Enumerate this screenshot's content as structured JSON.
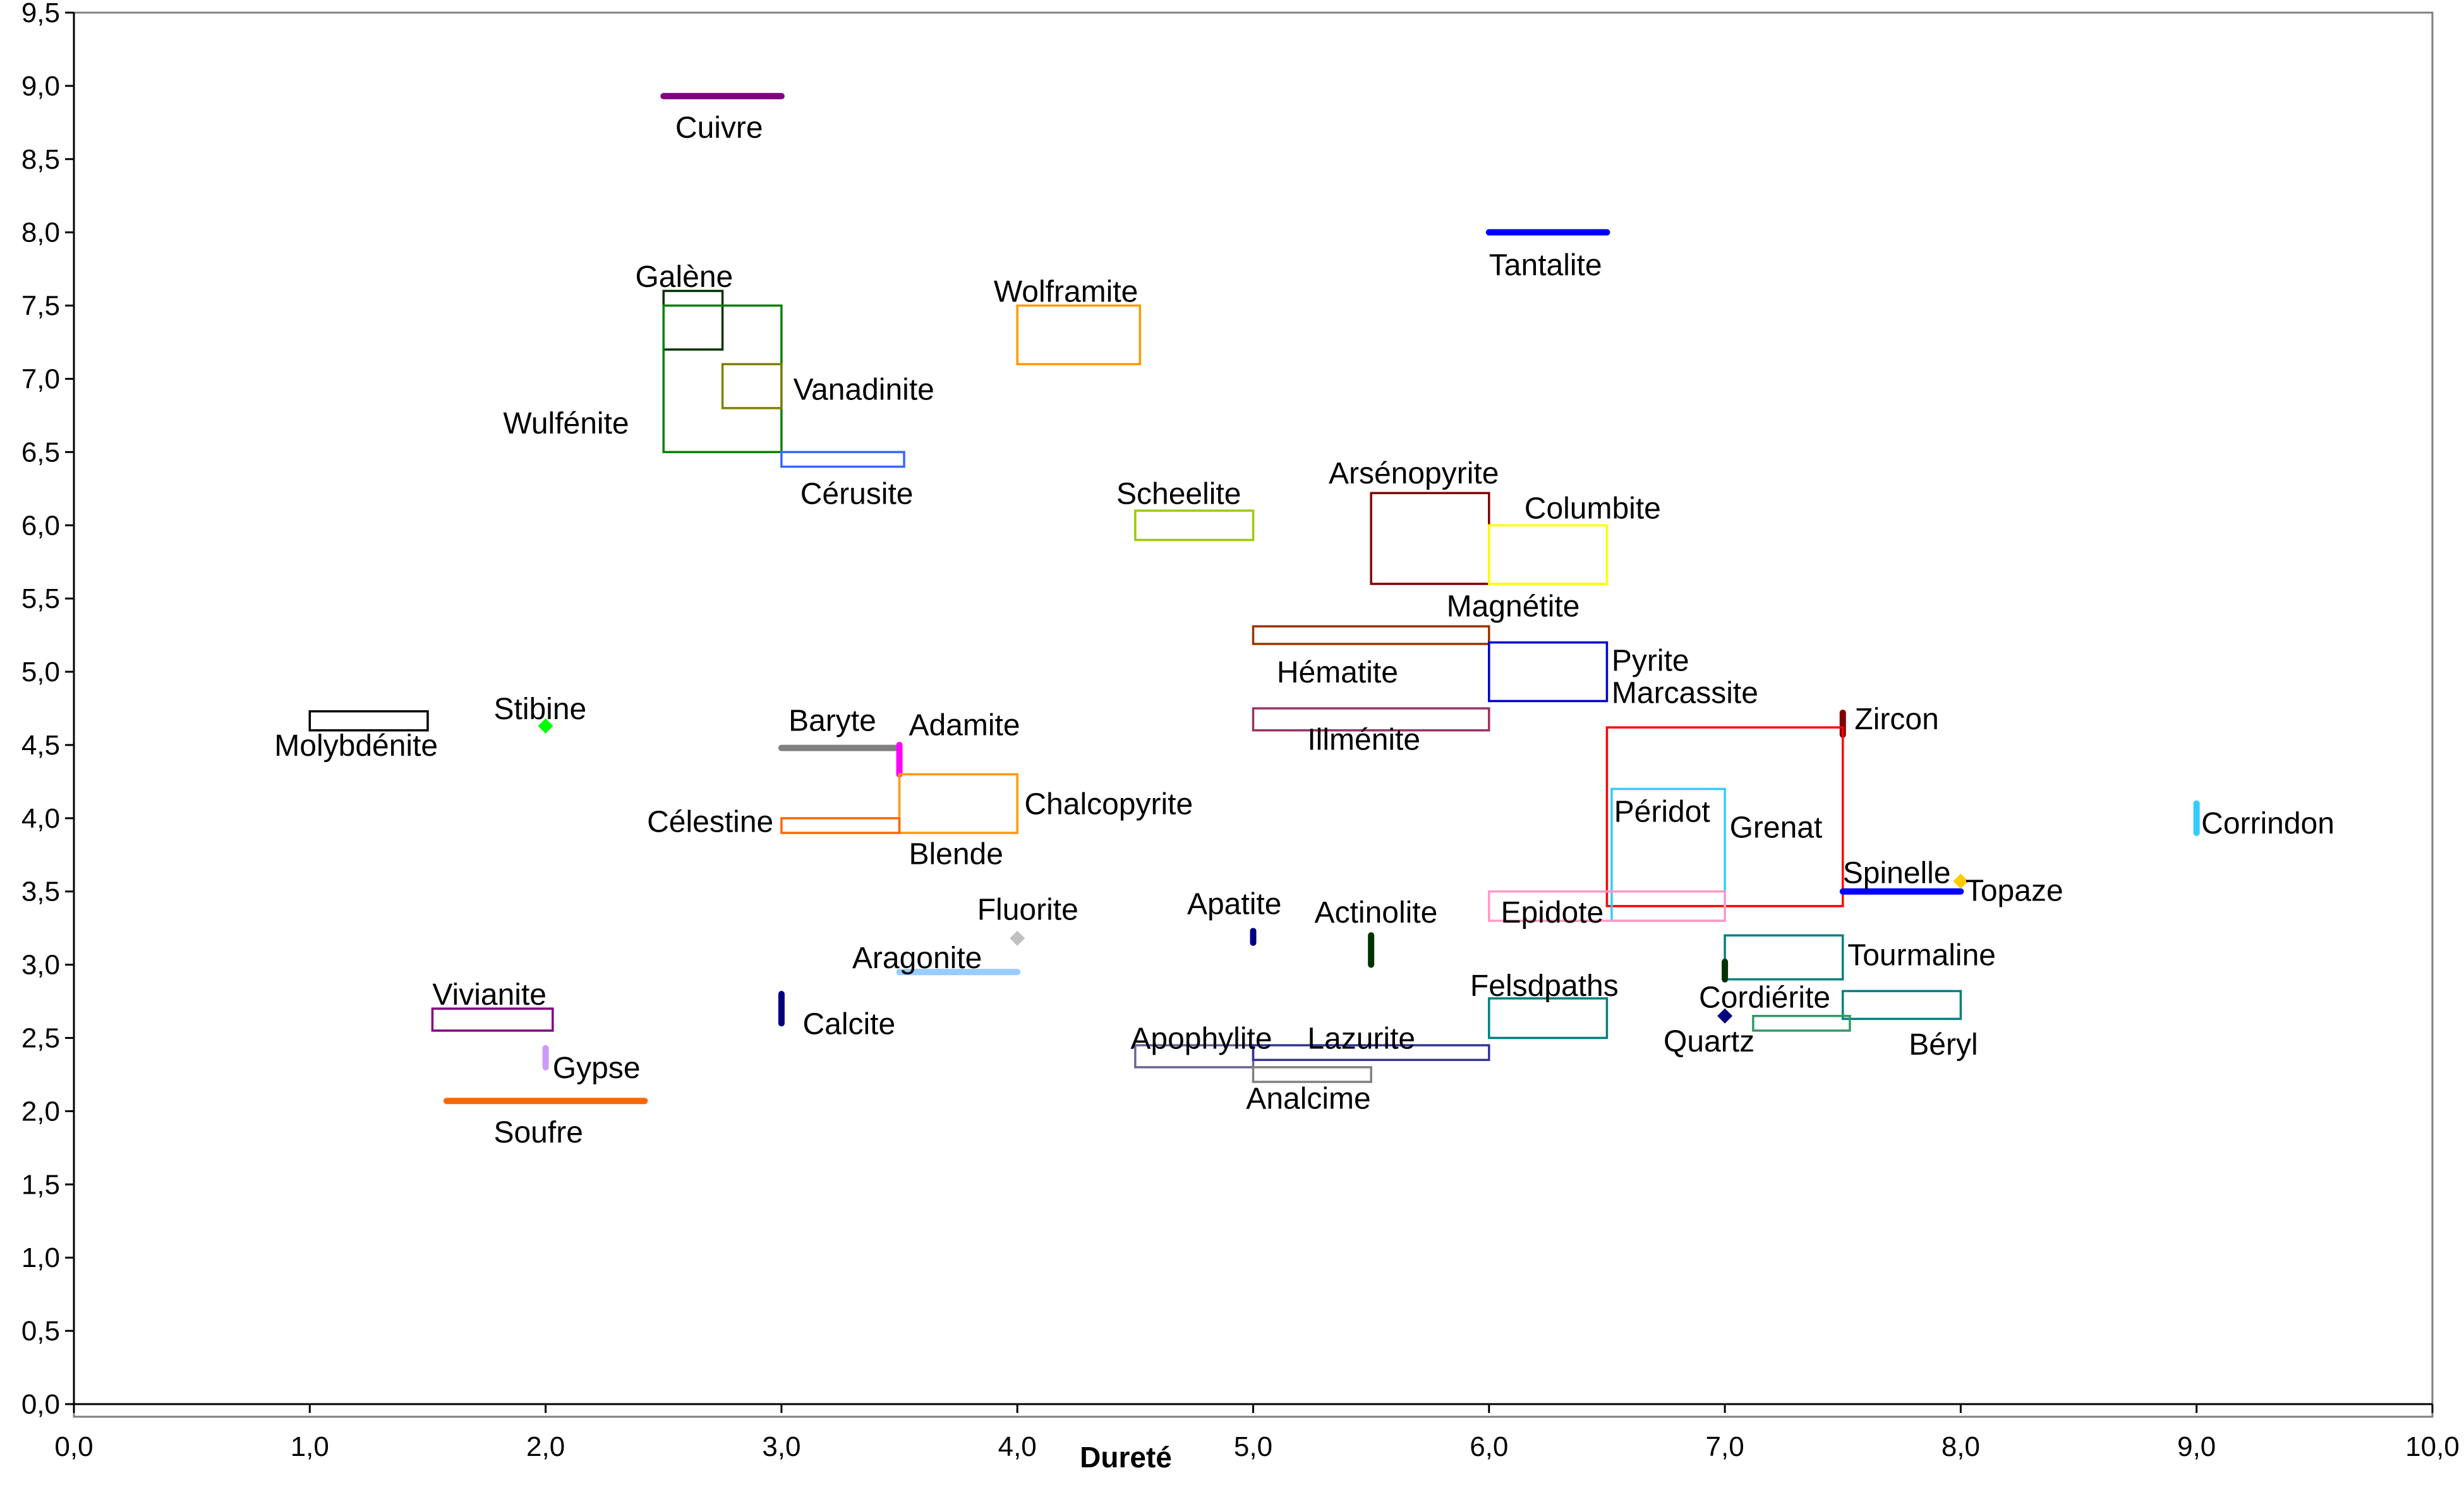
{
  "chart_data": {
    "type": "scatter",
    "title": "",
    "xlabel": "Dureté",
    "ylabel": "",
    "xlim": [
      0,
      10
    ],
    "ylim": [
      0,
      9.5
    ],
    "grid": false,
    "x_ticks": [
      "0,0",
      "1,0",
      "2,0",
      "3,0",
      "4,0",
      "5,0",
      "6,0",
      "7,0",
      "8,0",
      "9,0",
      "10,0"
    ],
    "y_ticks": [
      "0,0",
      "0,5",
      "1,0",
      "1,5",
      "2,0",
      "2,5",
      "3,0",
      "3,5",
      "4,0",
      "4,5",
      "5,0",
      "5,5",
      "6,0",
      "6,5",
      "7,0",
      "7,5",
      "8,0",
      "8,5",
      "9,0",
      "9,5"
    ],
    "minerals": [
      {
        "name": "Cuivre",
        "shape": "hline",
        "x0": 2.5,
        "x1": 3.0,
        "y": 8.93,
        "color": "#800080"
      },
      {
        "name": "Galène",
        "shape": "rect",
        "x0": 2.5,
        "x1": 2.75,
        "y0": 7.2,
        "y1": 7.6,
        "color": "#003300"
      },
      {
        "name": "Wulfénite",
        "shape": "rect",
        "x0": 2.5,
        "x1": 3.0,
        "y0": 6.5,
        "y1": 7.5,
        "color": "#008000"
      },
      {
        "name": "Vanadinite",
        "shape": "rect",
        "x0": 2.75,
        "x1": 3.0,
        "y0": 6.8,
        "y1": 7.1,
        "color": "#808000"
      },
      {
        "name": "Cérusite",
        "shape": "rect",
        "x0": 3.0,
        "x1": 3.52,
        "y0": 6.4,
        "y1": 6.5,
        "color": "#3366ff"
      },
      {
        "name": "Wolframite",
        "shape": "rect",
        "x0": 4.0,
        "x1": 4.52,
        "y0": 7.1,
        "y1": 7.5,
        "color": "#ff9900"
      },
      {
        "name": "Scheelite",
        "shape": "rect",
        "x0": 4.5,
        "x1": 5.0,
        "y0": 5.9,
        "y1": 6.1,
        "color": "#99cc00"
      },
      {
        "name": "Tantalite",
        "shape": "hline",
        "x0": 6.0,
        "x1": 6.5,
        "y": 8.0,
        "color": "#0000ff"
      },
      {
        "name": "Arsénopyrite",
        "shape": "rect",
        "x0": 5.5,
        "x1": 6.0,
        "y0": 5.6,
        "y1": 6.22,
        "color": "#800000"
      },
      {
        "name": "Columbite",
        "shape": "rect",
        "x0": 6.0,
        "x1": 6.5,
        "y0": 5.6,
        "y1": 6.0,
        "color": "#ffff00"
      },
      {
        "name": "Magnétite",
        "shape": "rect",
        "x0": 5.0,
        "x1": 6.0,
        "y0": 5.19,
        "y1": 5.31,
        "color": "#993300"
      },
      {
        "name": "Hématite",
        "shape": "none",
        "x": 5.0,
        "y": 5.0,
        "color": "#993300"
      },
      {
        "name": "Pyrite",
        "shape": "rect",
        "x0": 6.0,
        "x1": 6.5,
        "y0": 4.8,
        "y1": 5.2,
        "color": "#0000cc"
      },
      {
        "name": "Marcassite",
        "shape": "none",
        "x": 6.5,
        "y": 4.8,
        "color": "#0000cc"
      },
      {
        "name": "Illménite",
        "shape": "rect",
        "x0": 5.0,
        "x1": 6.0,
        "y0": 4.6,
        "y1": 4.75,
        "color": "#993366"
      },
      {
        "name": "Molybdénite",
        "shape": "rect",
        "x0": 1.0,
        "x1": 1.5,
        "y0": 4.6,
        "y1": 4.73,
        "color": "#000000"
      },
      {
        "name": "Stibine",
        "shape": "dot",
        "x": 2.0,
        "y": 4.63,
        "color": "#00ff00"
      },
      {
        "name": "Baryte",
        "shape": "hline",
        "x0": 3.0,
        "x1": 3.5,
        "y": 4.48,
        "color": "#808080"
      },
      {
        "name": "Adamite",
        "shape": "vline",
        "x": 3.5,
        "y0": 4.3,
        "y1": 4.5,
        "color": "#ff00ff"
      },
      {
        "name": "Chalcopyrite",
        "shape": "rect",
        "x0": 3.5,
        "x1": 4.0,
        "y0": 3.9,
        "y1": 4.3,
        "color": "#ff9900"
      },
      {
        "name": "Célestine",
        "shape": "rect",
        "x0": 3.0,
        "x1": 3.5,
        "y0": 3.9,
        "y1": 4.0,
        "color": "#ff6600"
      },
      {
        "name": "Blende",
        "shape": "none",
        "x": 3.5,
        "y": 3.9,
        "color": "#ff9900"
      },
      {
        "name": "Zircon",
        "shape": "vline",
        "x": 7.5,
        "y0": 4.57,
        "y1": 4.72,
        "color": "#800000"
      },
      {
        "name": "Grenat",
        "shape": "rect",
        "x0": 6.5,
        "x1": 7.5,
        "y0": 3.4,
        "y1": 4.62,
        "color": "#ff0000"
      },
      {
        "name": "Péridot",
        "shape": "rect",
        "x0": 6.52,
        "x1": 7.0,
        "y0": 3.3,
        "y1": 4.2,
        "color": "#33ccff"
      },
      {
        "name": "Epidote",
        "shape": "rect",
        "x0": 6.0,
        "x1": 7.0,
        "y0": 3.3,
        "y1": 3.5,
        "color": "#ff99cc"
      },
      {
        "name": "Spinelle",
        "shape": "hline",
        "x0": 7.5,
        "x1": 8.0,
        "y": 3.5,
        "color": "#0000ff"
      },
      {
        "name": "Topaze",
        "shape": "dot",
        "x": 8.0,
        "y": 3.57,
        "color": "#ffcc00"
      },
      {
        "name": "Corrindon",
        "shape": "vline",
        "x": 9.0,
        "y0": 3.9,
        "y1": 4.1,
        "color": "#33ccff"
      },
      {
        "name": "Tourmaline",
        "shape": "rect",
        "x0": 7.0,
        "x1": 7.5,
        "y0": 2.9,
        "y1": 3.2,
        "color": "#008080"
      },
      {
        "name": "Cordiérite",
        "shape": "vline",
        "x": 7.0,
        "y0": 2.9,
        "y1": 3.02,
        "color": "#003300"
      },
      {
        "name": "Béryl",
        "shape": "rect",
        "x0": 7.5,
        "x1": 8.0,
        "y0": 2.63,
        "y1": 2.82,
        "color": "#008080"
      },
      {
        "name": "Quartz",
        "shape": "dot",
        "x": 7.0,
        "y": 2.65,
        "color": "#000080"
      },
      {
        "name": "Quartz-rect",
        "shape": "rect",
        "x0": 7.12,
        "x1": 7.53,
        "y0": 2.55,
        "y1": 2.65,
        "color": "#339966"
      },
      {
        "name": "Felsdpaths",
        "shape": "rect",
        "x0": 6.0,
        "x1": 6.5,
        "y0": 2.5,
        "y1": 2.77,
        "color": "#008080"
      },
      {
        "name": "Fluorite",
        "shape": "dot",
        "x": 4.0,
        "y": 3.18,
        "color": "#c0c0c0"
      },
      {
        "name": "Aragonite",
        "shape": "hline",
        "x0": 3.5,
        "x1": 4.0,
        "y": 2.95,
        "color": "#99ccff"
      },
      {
        "name": "Apatite",
        "shape": "vline",
        "x": 5.0,
        "y0": 3.15,
        "y1": 3.23,
        "color": "#000080"
      },
      {
        "name": "Actinolite",
        "shape": "vline",
        "x": 5.5,
        "y0": 3.0,
        "y1": 3.2,
        "color": "#003300"
      },
      {
        "name": "Calcite",
        "shape": "vline",
        "x": 3.0,
        "y0": 2.6,
        "y1": 2.8,
        "color": "#000080"
      },
      {
        "name": "Vivianite",
        "shape": "rect",
        "x0": 1.52,
        "x1": 2.03,
        "y0": 2.55,
        "y1": 2.7,
        "color": "#800080"
      },
      {
        "name": "Gypse",
        "shape": "vline",
        "x": 2.0,
        "y0": 2.3,
        "y1": 2.43,
        "color": "#cc99ff"
      },
      {
        "name": "Soufre",
        "shape": "hline",
        "x0": 1.58,
        "x1": 2.42,
        "y": 2.07,
        "color": "#ff6600"
      },
      {
        "name": "Apophylite",
        "shape": "rect",
        "x0": 4.5,
        "x1": 5.0,
        "y0": 2.3,
        "y1": 2.45,
        "color": "#666699"
      },
      {
        "name": "Lazurite",
        "shape": "rect",
        "x0": 5.0,
        "x1": 6.0,
        "y0": 2.35,
        "y1": 2.45,
        "color": "#333399"
      },
      {
        "name": "Analcime",
        "shape": "rect",
        "x0": 5.0,
        "x1": 5.5,
        "y0": 2.2,
        "y1": 2.3,
        "color": "#808080"
      }
    ],
    "labels": [
      {
        "text": "Cuivre",
        "x": 2.55,
        "y": 8.72
      },
      {
        "text": "Galène",
        "x": 2.38,
        "y": 7.7
      },
      {
        "text": "Wulfénite",
        "x": 1.82,
        "y": 6.7
      },
      {
        "text": "Vanadinite",
        "x": 3.05,
        "y": 6.93
      },
      {
        "text": "Cérusite",
        "x": 3.08,
        "y": 6.22
      },
      {
        "text": "Wolframite",
        "x": 3.9,
        "y": 7.6
      },
      {
        "text": "Scheelite",
        "x": 4.42,
        "y": 6.22
      },
      {
        "text": "Tantalite",
        "x": 6.0,
        "y": 7.78
      },
      {
        "text": "Arsénopyrite",
        "x": 5.32,
        "y": 6.36
      },
      {
        "text": "Columbite",
        "x": 6.15,
        "y": 6.12
      },
      {
        "text": "Magnétite",
        "x": 5.82,
        "y": 5.45
      },
      {
        "text": "Hématite",
        "x": 5.1,
        "y": 5.0
      },
      {
        "text": "Pyrite",
        "x": 6.52,
        "y": 5.08
      },
      {
        "text": "Marcassite",
        "x": 6.52,
        "y": 4.86
      },
      {
        "text": "Illménite",
        "x": 5.23,
        "y": 4.54
      },
      {
        "text": "Molybdénite",
        "x": 0.85,
        "y": 4.5
      },
      {
        "text": "Stibine",
        "x": 1.78,
        "y": 4.75
      },
      {
        "text": "Baryte",
        "x": 3.03,
        "y": 4.67
      },
      {
        "text": "Adamite",
        "x": 3.54,
        "y": 4.64
      },
      {
        "text": "Chalcopyrite",
        "x": 4.03,
        "y": 4.1
      },
      {
        "text": "Célestine",
        "x": 2.43,
        "y": 3.98
      },
      {
        "text": "Blende",
        "x": 3.54,
        "y": 3.76
      },
      {
        "text": "Zircon",
        "x": 7.55,
        "y": 4.68
      },
      {
        "text": "Grenat",
        "x": 7.02,
        "y": 3.94
      },
      {
        "text": "Péridot",
        "x": 6.53,
        "y": 4.05
      },
      {
        "text": "Epidote",
        "x": 6.05,
        "y": 3.36
      },
      {
        "text": "Spinelle",
        "x": 7.5,
        "y": 3.63
      },
      {
        "text": "Topaze",
        "x": 8.02,
        "y": 3.51
      },
      {
        "text": "Corrindon",
        "x": 9.02,
        "y": 3.97
      },
      {
        "text": "Tourmaline",
        "x": 7.52,
        "y": 3.07
      },
      {
        "text": "Cordiérite",
        "x": 6.89,
        "y": 2.78
      },
      {
        "text": "Béryl",
        "x": 7.78,
        "y": 2.46
      },
      {
        "text": "Quartz",
        "x": 6.74,
        "y": 2.48
      },
      {
        "text": "Felsdpaths",
        "x": 5.92,
        "y": 2.86
      },
      {
        "text": "Fluorite",
        "x": 3.83,
        "y": 3.38
      },
      {
        "text": "Aragonite",
        "x": 3.3,
        "y": 3.05
      },
      {
        "text": "Apatite",
        "x": 4.72,
        "y": 3.42
      },
      {
        "text": "Actinolite",
        "x": 5.26,
        "y": 3.36
      },
      {
        "text": "Calcite",
        "x": 3.09,
        "y": 2.6
      },
      {
        "text": "Vivianite",
        "x": 1.52,
        "y": 2.8
      },
      {
        "text": "Gypse",
        "x": 2.03,
        "y": 2.3
      },
      {
        "text": "Soufre",
        "x": 1.78,
        "y": 1.86
      },
      {
        "text": "Apophylite",
        "x": 4.48,
        "y": 2.5
      },
      {
        "text": "Lazurite",
        "x": 5.23,
        "y": 2.5
      },
      {
        "text": "Analcime",
        "x": 4.97,
        "y": 2.09
      }
    ]
  }
}
